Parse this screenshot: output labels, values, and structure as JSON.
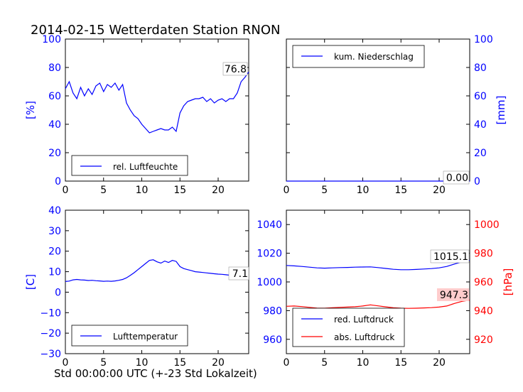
{
  "figure": {
    "title": "2014-02-15 Wetterdaten Station RNON",
    "xlabel": "Std 00:00:00 UTC (+-23 Std Lokalzeit)"
  },
  "colors": {
    "blue": "#0000ff",
    "red": "#ff0000",
    "black": "#000000",
    "annot_bg": "#ffcccc"
  },
  "chart_data": [
    {
      "id": "humidity",
      "type": "line",
      "xlim": [
        0,
        24
      ],
      "xticks": [
        "0",
        "5",
        "10",
        "15",
        "20"
      ],
      "ylim": [
        0,
        100
      ],
      "yticks": [
        "0",
        "20",
        "40",
        "60",
        "80",
        "100"
      ],
      "ylabel": "[%]",
      "ylabel_color": "#0000ff",
      "legend": "lower-left",
      "annotation": "76.8",
      "series": [
        {
          "name": "rel. Luftfeuchte",
          "color": "#0000ff",
          "x": [
            0,
            0.5,
            1,
            1.5,
            2,
            2.5,
            3,
            3.5,
            4,
            4.5,
            5,
            5.5,
            6,
            6.5,
            7,
            7.5,
            8,
            8.5,
            9,
            9.5,
            10,
            10.5,
            11,
            11.5,
            12,
            12.5,
            13,
            13.5,
            14,
            14.5,
            15,
            15.5,
            16,
            16.5,
            17,
            17.5,
            18,
            18.5,
            19,
            19.5,
            20,
            20.5,
            21,
            21.5,
            22,
            22.5,
            23,
            23.5,
            24
          ],
          "y": [
            65,
            70,
            62,
            58,
            66,
            60,
            65,
            61,
            67,
            69,
            63,
            68,
            66,
            69,
            64,
            68,
            55,
            50,
            46,
            44,
            40,
            37,
            34,
            35,
            36,
            37,
            36,
            36,
            38,
            35,
            48,
            53,
            56,
            57,
            58,
            58,
            59,
            56,
            58,
            55,
            57,
            58,
            56,
            58,
            58,
            62,
            70,
            73,
            76.8
          ]
        }
      ]
    },
    {
      "id": "precip",
      "type": "line",
      "xlim": [
        0,
        24
      ],
      "xticks": [
        "0",
        "5",
        "10",
        "15",
        "20"
      ],
      "ylim": [
        0,
        100
      ],
      "yticks": [
        "0",
        "20",
        "40",
        "60",
        "80",
        "100"
      ],
      "ylabel": "[mm]",
      "ylabel_color": "#0000ff",
      "yaxis_side": "right",
      "legend": "top-left",
      "annotation": "0.00",
      "series": [
        {
          "name": "kum. Niederschlag",
          "color": "#0000ff",
          "x": [
            0,
            24
          ],
          "y": [
            0,
            0
          ]
        }
      ]
    },
    {
      "id": "temperature",
      "type": "line",
      "xlim": [
        0,
        24
      ],
      "xticks": [
        "0",
        "5",
        "10",
        "15",
        "20"
      ],
      "ylim": [
        -30,
        40
      ],
      "yticks": [
        "−30",
        "−20",
        "−10",
        "0",
        "10",
        "20",
        "30",
        "40"
      ],
      "ylabel": "[C]",
      "ylabel_color": "#0000ff",
      "legend": "lower-left",
      "annotation": "7.1",
      "series": [
        {
          "name": "Lufttemperatur",
          "color": "#0000ff",
          "x": [
            0,
            0.5,
            1,
            1.5,
            2,
            2.5,
            3,
            3.5,
            4,
            4.5,
            5,
            5.5,
            6,
            6.5,
            7,
            7.5,
            8,
            8.5,
            9,
            9.5,
            10,
            10.5,
            11,
            11.5,
            12,
            12.5,
            13,
            13.5,
            14,
            14.5,
            15,
            15.5,
            16,
            16.5,
            17,
            17.5,
            18,
            18.5,
            19,
            19.5,
            20,
            20.5,
            21,
            21.5,
            22,
            22.5,
            23,
            23.5,
            24
          ],
          "y": [
            5.2,
            5.4,
            6.0,
            6.2,
            6.0,
            5.9,
            5.7,
            5.8,
            5.6,
            5.5,
            5.3,
            5.4,
            5.3,
            5.5,
            5.8,
            6.2,
            7.0,
            8.2,
            9.5,
            11.0,
            12.5,
            14.0,
            15.5,
            15.8,
            14.8,
            14.2,
            15.2,
            14.5,
            15.5,
            15.0,
            12.5,
            11.5,
            11.0,
            10.5,
            10.0,
            9.8,
            9.6,
            9.4,
            9.2,
            9.0,
            8.8,
            8.7,
            8.5,
            8.3,
            8.2,
            8.0,
            7.7,
            7.3,
            7.1
          ]
        }
      ]
    },
    {
      "id": "pressure",
      "type": "line",
      "xlim": [
        0,
        24
      ],
      "xticks": [
        "0",
        "5",
        "10",
        "15",
        "20"
      ],
      "ylim": [
        950,
        1050
      ],
      "yticks": [
        "960",
        "980",
        "1000",
        "1020",
        "1040"
      ],
      "ylim_right": [
        910,
        1010
      ],
      "yticks_right": [
        "920",
        "940",
        "960",
        "980",
        "1000"
      ],
      "ylabel_right": "[hPa]",
      "ylabel_right_color": "#ff0000",
      "legend": "lower-left",
      "annotations": [
        "1015.1",
        "947.3"
      ],
      "series": [
        {
          "name": "red. Luftdruck",
          "color": "#0000ff",
          "axis": "left",
          "x": [
            0,
            1,
            2,
            3,
            4,
            5,
            6,
            7,
            8,
            9,
            10,
            11,
            12,
            13,
            14,
            15,
            16,
            17,
            18,
            19,
            20,
            21,
            22,
            23,
            24
          ],
          "y": [
            1011.5,
            1011.2,
            1010.8,
            1010.3,
            1009.8,
            1009.6,
            1009.8,
            1010.0,
            1010.1,
            1010.3,
            1010.4,
            1010.5,
            1010.0,
            1009.4,
            1008.8,
            1008.5,
            1008.5,
            1008.7,
            1009.0,
            1009.3,
            1009.8,
            1010.8,
            1012.5,
            1014.0,
            1015.1
          ]
        },
        {
          "name": "abs. Luftdruck",
          "color": "#ff0000",
          "axis": "right",
          "x": [
            0,
            1,
            2,
            3,
            4,
            5,
            6,
            7,
            8,
            9,
            10,
            11,
            12,
            13,
            14,
            15,
            16,
            17,
            18,
            19,
            20,
            21,
            22,
            23,
            24
          ],
          "y": [
            943.0,
            943.2,
            942.8,
            942.3,
            941.8,
            941.7,
            942.0,
            942.3,
            942.5,
            942.7,
            943.2,
            944.0,
            943.3,
            942.6,
            942.0,
            941.7,
            941.6,
            941.7,
            941.9,
            942.1,
            942.5,
            943.2,
            945.0,
            946.5,
            947.3
          ]
        }
      ]
    }
  ]
}
